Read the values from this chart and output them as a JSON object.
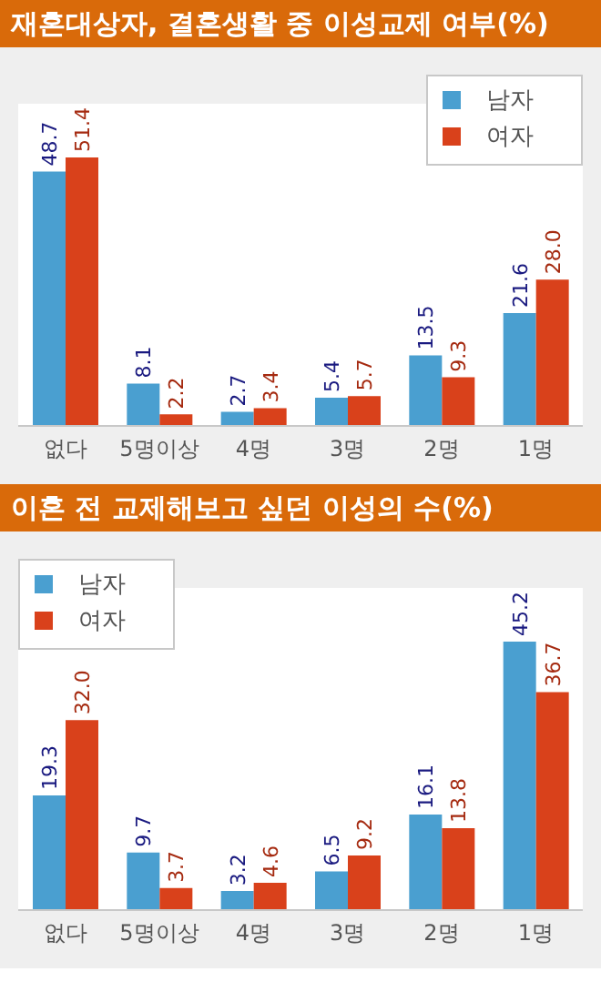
{
  "chart_data": [
    {
      "type": "bar",
      "title": "재혼대상자, 결혼생활 중 이성교제 여부(%)",
      "categories": [
        "없다",
        "5명이상",
        "4명",
        "3명",
        "2명",
        "1명"
      ],
      "legend": "top right",
      "tick_labels": "x",
      "series": [
        {
          "name": "남자",
          "color": "#4a9fd0",
          "values": [
            48.7,
            8.1,
            2.7,
            5.4,
            13.5,
            21.6
          ],
          "value_labels": [
            "48.7",
            "8.1",
            "2.7",
            "5.4",
            "13.5",
            "21.6"
          ]
        },
        {
          "name": "여자",
          "color": "#d9411b",
          "values": [
            51.4,
            2.2,
            3.4,
            5.7,
            9.3,
            28.0
          ],
          "value_labels": [
            "51.4",
            "2.2",
            "3.4",
            "5.7",
            "9.3",
            "28.0"
          ]
        }
      ]
    },
    {
      "type": "bar",
      "title": "이혼 전 교제해보고 싶던 이성의 수(%)",
      "categories": [
        "없다",
        "5명이상",
        "4명",
        "3명",
        "2명",
        "1명"
      ],
      "legend": "top left",
      "tick_labels": "x",
      "series": [
        {
          "name": "남자",
          "color": "#4a9fd0",
          "values": [
            19.3,
            9.7,
            3.2,
            6.5,
            16.1,
            45.2
          ],
          "value_labels": [
            "19.3",
            "9.7",
            "3.2",
            "6.5",
            "16.1",
            "45.2"
          ]
        },
        {
          "name": "여자",
          "color": "#d9411b",
          "values": [
            32.0,
            3.7,
            4.6,
            9.2,
            13.8,
            36.7
          ],
          "value_labels": [
            "32.0",
            "3.7",
            "4.6",
            "9.2",
            "13.8",
            "36.7"
          ]
        }
      ]
    }
  ]
}
